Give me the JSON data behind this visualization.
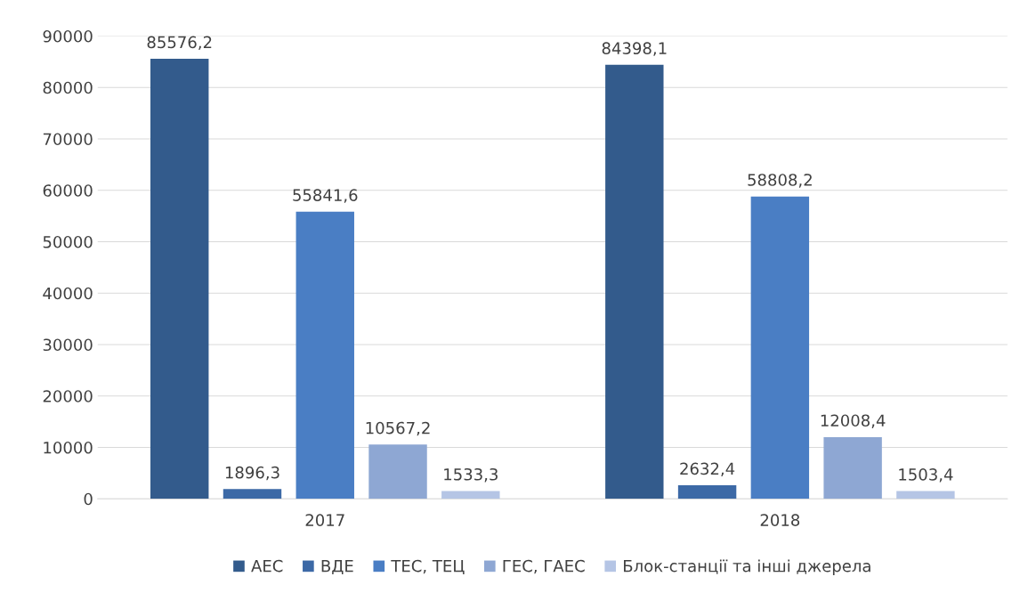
{
  "chart_data": {
    "type": "bar",
    "categories": [
      "2017",
      "2018"
    ],
    "series": [
      {
        "name": "АЕС",
        "color": "#335b8c",
        "values": [
          85576.2,
          84398.1
        ],
        "value_labels": [
          "85576,2",
          "84398,1"
        ]
      },
      {
        "name": "ВДЕ",
        "color": "#3c69a6",
        "values": [
          1896.3,
          2632.4
        ],
        "value_labels": [
          "1896,3",
          "2632,4"
        ]
      },
      {
        "name": "ТЕС, ТЕЦ",
        "color": "#4a7ec4",
        "values": [
          55841.6,
          58808.2
        ],
        "value_labels": [
          "55841,6",
          "58808,2"
        ]
      },
      {
        "name": "ГЕС, ГАЕС",
        "color": "#8ea7d3",
        "values": [
          10567.2,
          12008.4
        ],
        "value_labels": [
          "10567,2",
          "12008,4"
        ]
      },
      {
        "name": "Блок-станції та інші джерела",
        "color": "#b5c5e5",
        "values": [
          1533.3,
          1503.4
        ],
        "value_labels": [
          "1533,3",
          "1503,4"
        ]
      }
    ],
    "ylim": [
      0,
      90000
    ],
    "yticks": [
      0,
      10000,
      20000,
      30000,
      40000,
      50000,
      60000,
      70000,
      80000,
      90000
    ],
    "grid": "y",
    "legend": "bottom"
  }
}
